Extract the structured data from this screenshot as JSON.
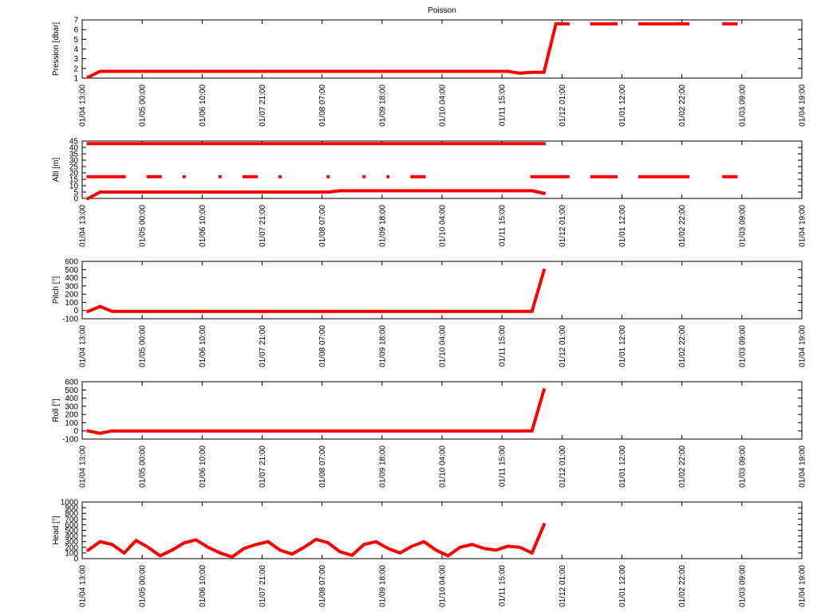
{
  "chart_data": [
    {
      "type": "line",
      "title": "Poisson",
      "y_label": "Pression [dbar]",
      "x": [
        0.1,
        0.3,
        0.5,
        0.7,
        0.9,
        1.1,
        1.3,
        1.5,
        1.7,
        1.9,
        2.1,
        2.3,
        2.5,
        2.7,
        2.9,
        3.1,
        3.3,
        3.5,
        3.7,
        3.9,
        4.1,
        4.3,
        4.5,
        4.7,
        4.9,
        5.1,
        5.3,
        5.5,
        5.7,
        5.9,
        6.1,
        6.3,
        6.5,
        6.7,
        6.9,
        7.1,
        7.3,
        7.5,
        7.7,
        7.9,
        8.1,
        8.3,
        8.5,
        8.7,
        8.9,
        9.1,
        9.3,
        9.5,
        9.7,
        9.9,
        10.1,
        10.3,
        10.5,
        10.7,
        10.9
      ],
      "series": [
        {
          "color": "#ff0000",
          "values": [
            1.1,
            1.7,
            1.7,
            1.7,
            1.7,
            1.7,
            1.7,
            1.7,
            1.7,
            1.7,
            1.7,
            1.7,
            1.7,
            1.7,
            1.7,
            1.7,
            1.7,
            1.7,
            1.7,
            1.7,
            1.7,
            1.7,
            1.7,
            1.7,
            1.7,
            1.7,
            1.7,
            1.7,
            1.7,
            1.7,
            1.7,
            1.7,
            1.7,
            1.7,
            1.7,
            1.7,
            1.5,
            1.6,
            1.6,
            6.6,
            6.6,
            null,
            6.6,
            6.6,
            6.6,
            null,
            6.6,
            6.6,
            6.6,
            6.6,
            6.6,
            null,
            null,
            6.6,
            6.6
          ]
        }
      ],
      "xlim": [
        0,
        12
      ],
      "xticks": [
        {
          "value": 0,
          "label": "01/04 13:00"
        },
        {
          "value": 1,
          "label": "01/05 00:00"
        },
        {
          "value": 2,
          "label": "01/06 10:00"
        },
        {
          "value": 3,
          "label": "01/07 21:00"
        },
        {
          "value": 4,
          "label": "01/08 07:00"
        },
        {
          "value": 5,
          "label": "01/09 18:00"
        },
        {
          "value": 6,
          "label": "01/10 04:00"
        },
        {
          "value": 7,
          "label": "01/11 15:00"
        },
        {
          "value": 8,
          "label": "01/12 01:00"
        },
        {
          "value": 9,
          "label": "01/01 12:00"
        },
        {
          "value": 10,
          "label": "01/02 22:00"
        },
        {
          "value": 11,
          "label": "01/03 09:00"
        },
        {
          "value": 12,
          "label": "01/04 19:00"
        }
      ],
      "ylim": [
        1,
        7
      ],
      "yticks": [
        1,
        2,
        3,
        4,
        5,
        6,
        7
      ]
    },
    {
      "type": "line",
      "y_label": "Alti [m]",
      "x": [
        0.1,
        0.3,
        0.5,
        0.7,
        0.9,
        1.1,
        1.3,
        1.5,
        1.7,
        1.9,
        2.1,
        2.3,
        2.5,
        2.7,
        2.9,
        3.1,
        3.3,
        3.5,
        3.7,
        3.9,
        4.1,
        4.3,
        4.5,
        4.7,
        4.9,
        5.1,
        5.3,
        5.5,
        5.7,
        5.9,
        6.1,
        6.3,
        6.5,
        6.7,
        6.9,
        7.1,
        7.3,
        7.5,
        7.7,
        7.9,
        8.1,
        8.3,
        8.5,
        8.7,
        8.9,
        9.1,
        9.3,
        9.5,
        9.7,
        9.9,
        10.1,
        10.3,
        10.5,
        10.7,
        10.9
      ],
      "series": [
        {
          "color": "#ff0000",
          "values": [
            43,
            43,
            43,
            43,
            43,
            43,
            43,
            43,
            43,
            43,
            43,
            43,
            43,
            43,
            43,
            43,
            43,
            43,
            43,
            43,
            43,
            43,
            43,
            43,
            43,
            43,
            43,
            43,
            43,
            43,
            43,
            43,
            43,
            43,
            43,
            43,
            43,
            43,
            43,
            null,
            null,
            null,
            null,
            null,
            null,
            null,
            null,
            null,
            null,
            null,
            null,
            null,
            null,
            null,
            null
          ]
        },
        {
          "color": "#ff0000",
          "values": [
            17,
            17,
            17,
            17,
            null,
            17,
            17,
            null,
            17,
            null,
            null,
            17,
            null,
            17,
            17,
            null,
            17,
            null,
            null,
            null,
            17,
            null,
            null,
            17,
            null,
            17,
            null,
            17,
            17,
            null,
            null,
            null,
            null,
            null,
            null,
            null,
            null,
            17,
            17,
            17,
            17,
            null,
            17,
            17,
            17,
            null,
            17,
            17,
            17,
            17,
            17,
            null,
            null,
            17,
            17
          ]
        },
        {
          "color": "#ff0000",
          "values": [
            0,
            5,
            5,
            5,
            5,
            5,
            5,
            5,
            5,
            5,
            5,
            5,
            5,
            5,
            5,
            5,
            5,
            5,
            5,
            5,
            5,
            6,
            6,
            6,
            6,
            6,
            6,
            6,
            6,
            6,
            6,
            6,
            6,
            6,
            6,
            6,
            6,
            6,
            4,
            null,
            null,
            null,
            null,
            null,
            null,
            null,
            null,
            null,
            null,
            null,
            null,
            null,
            null,
            null,
            null
          ]
        }
      ],
      "xlim": [
        0,
        12
      ],
      "xticks": [
        {
          "value": 0,
          "label": "01/04 13:00"
        },
        {
          "value": 1,
          "label": "01/05 00:00"
        },
        {
          "value": 2,
          "label": "01/06 10:00"
        },
        {
          "value": 3,
          "label": "01/07 21:00"
        },
        {
          "value": 4,
          "label": "01/08 07:00"
        },
        {
          "value": 5,
          "label": "01/09 18:00"
        },
        {
          "value": 6,
          "label": "01/10 04:00"
        },
        {
          "value": 7,
          "label": "01/11 15:00"
        },
        {
          "value": 8,
          "label": "01/12 01:00"
        },
        {
          "value": 9,
          "label": "01/01 12:00"
        },
        {
          "value": 10,
          "label": "01/02 22:00"
        },
        {
          "value": 11,
          "label": "01/03 09:00"
        },
        {
          "value": 12,
          "label": "01/04 19:00"
        }
      ],
      "ylim": [
        0,
        45
      ],
      "yticks": [
        0,
        5,
        10,
        15,
        20,
        25,
        30,
        35,
        40,
        45
      ]
    },
    {
      "type": "line",
      "y_label": "Pitch [°]",
      "x": [
        0.1,
        0.3,
        0.5,
        0.7,
        0.9,
        1.1,
        1.3,
        1.5,
        1.7,
        1.9,
        2.1,
        2.3,
        2.5,
        2.7,
        2.9,
        3.1,
        3.3,
        3.5,
        3.7,
        3.9,
        4.1,
        4.3,
        4.5,
        4.7,
        4.9,
        5.1,
        5.3,
        5.5,
        5.7,
        5.9,
        6.1,
        6.3,
        6.5,
        6.7,
        6.9,
        7.1,
        7.3,
        7.5,
        7.7,
        7.9,
        8.1,
        8.3,
        8.5,
        8.7,
        8.9,
        9.1,
        9.3,
        9.5,
        9.7,
        9.9,
        10.1,
        10.3,
        10.5,
        10.7,
        10.9
      ],
      "series": [
        {
          "color": "#ff0000",
          "values": [
            -10,
            50,
            -10,
            -10,
            -10,
            -10,
            -10,
            -10,
            -10,
            -10,
            -10,
            -10,
            -10,
            -10,
            -10,
            -10,
            -10,
            -10,
            -10,
            -10,
            -10,
            -10,
            -10,
            -10,
            -10,
            -10,
            -10,
            -10,
            -10,
            -10,
            -10,
            -10,
            -10,
            -10,
            -10,
            -10,
            -10,
            -10,
            490,
            null,
            null,
            null,
            null,
            null,
            null,
            null,
            null,
            null,
            null,
            null,
            null,
            null,
            null,
            null,
            null
          ]
        }
      ],
      "xlim": [
        0,
        12
      ],
      "xticks": [
        {
          "value": 0,
          "label": "01/04 13:00"
        },
        {
          "value": 1,
          "label": "01/05 00:00"
        },
        {
          "value": 2,
          "label": "01/06 10:00"
        },
        {
          "value": 3,
          "label": "01/07 21:00"
        },
        {
          "value": 4,
          "label": "01/08 07:00"
        },
        {
          "value": 5,
          "label": "01/09 18:00"
        },
        {
          "value": 6,
          "label": "01/10 04:00"
        },
        {
          "value": 7,
          "label": "01/11 15:00"
        },
        {
          "value": 8,
          "label": "01/12 01:00"
        },
        {
          "value": 9,
          "label": "01/01 12:00"
        },
        {
          "value": 10,
          "label": "01/02 22:00"
        },
        {
          "value": 11,
          "label": "01/03 09:00"
        },
        {
          "value": 12,
          "label": "01/04 19:00"
        }
      ],
      "ylim": [
        -100,
        600
      ],
      "yticks": [
        -100,
        0,
        100,
        200,
        300,
        400,
        500,
        600
      ]
    },
    {
      "type": "line",
      "y_label": "Roll [°]",
      "x": [
        0.1,
        0.3,
        0.5,
        0.7,
        0.9,
        1.1,
        1.3,
        1.5,
        1.7,
        1.9,
        2.1,
        2.3,
        2.5,
        2.7,
        2.9,
        3.1,
        3.3,
        3.5,
        3.7,
        3.9,
        4.1,
        4.3,
        4.5,
        4.7,
        4.9,
        5.1,
        5.3,
        5.5,
        5.7,
        5.9,
        6.1,
        6.3,
        6.5,
        6.7,
        6.9,
        7.1,
        7.3,
        7.5,
        7.7,
        7.9,
        8.1,
        8.3,
        8.5,
        8.7,
        8.9,
        9.1,
        9.3,
        9.5,
        9.7,
        9.9,
        10.1,
        10.3,
        10.5,
        10.7,
        10.9
      ],
      "series": [
        {
          "color": "#ff0000",
          "values": [
            0,
            -30,
            0,
            0,
            0,
            0,
            0,
            0,
            0,
            0,
            0,
            0,
            0,
            0,
            0,
            0,
            0,
            0,
            0,
            0,
            0,
            0,
            0,
            0,
            0,
            0,
            0,
            0,
            0,
            0,
            0,
            0,
            0,
            0,
            0,
            0,
            0,
            0,
            500,
            null,
            null,
            null,
            null,
            null,
            null,
            null,
            null,
            null,
            null,
            null,
            null,
            null,
            null,
            null,
            null
          ]
        }
      ],
      "xlim": [
        0,
        12
      ],
      "xticks": [
        {
          "value": 0,
          "label": "01/04 13:00"
        },
        {
          "value": 1,
          "label": "01/05 00:00"
        },
        {
          "value": 2,
          "label": "01/06 10:00"
        },
        {
          "value": 3,
          "label": "01/07 21:00"
        },
        {
          "value": 4,
          "label": "01/08 07:00"
        },
        {
          "value": 5,
          "label": "01/09 18:00"
        },
        {
          "value": 6,
          "label": "01/10 04:00"
        },
        {
          "value": 7,
          "label": "01/11 15:00"
        },
        {
          "value": 8,
          "label": "01/12 01:00"
        },
        {
          "value": 9,
          "label": "01/01 12:00"
        },
        {
          "value": 10,
          "label": "01/02 22:00"
        },
        {
          "value": 11,
          "label": "01/03 09:00"
        },
        {
          "value": 12,
          "label": "01/04 19:00"
        }
      ],
      "ylim": [
        -100,
        600
      ],
      "yticks": [
        -100,
        0,
        100,
        200,
        300,
        400,
        500,
        600
      ]
    },
    {
      "type": "line",
      "y_label": "Head [°]",
      "x": [
        0.1,
        0.3,
        0.5,
        0.7,
        0.9,
        1.1,
        1.3,
        1.5,
        1.7,
        1.9,
        2.1,
        2.3,
        2.5,
        2.7,
        2.9,
        3.1,
        3.3,
        3.5,
        3.7,
        3.9,
        4.1,
        4.3,
        4.5,
        4.7,
        4.9,
        5.1,
        5.3,
        5.5,
        5.7,
        5.9,
        6.1,
        6.3,
        6.5,
        6.7,
        6.9,
        7.1,
        7.3,
        7.5,
        7.7,
        7.9,
        8.1,
        8.3,
        8.5,
        8.7,
        8.9,
        9.1,
        9.3,
        9.5,
        9.7,
        9.9,
        10.1,
        10.3,
        10.5,
        10.7,
        10.9
      ],
      "series": [
        {
          "color": "#ff0000",
          "values": [
            150,
            300,
            250,
            100,
            320,
            200,
            50,
            150,
            280,
            330,
            200,
            100,
            30,
            180,
            250,
            300,
            150,
            80,
            200,
            340,
            280,
            120,
            60,
            250,
            300,
            180,
            100,
            220,
            300,
            150,
            50,
            200,
            250,
            180,
            150,
            220,
            200,
            100,
            600,
            null,
            null,
            null,
            null,
            null,
            null,
            null,
            null,
            null,
            null,
            null,
            null,
            null,
            null,
            null,
            null
          ]
        }
      ],
      "xlim": [
        0,
        12
      ],
      "xticks": [
        {
          "value": 0,
          "label": "01/04 13:00"
        },
        {
          "value": 1,
          "label": "01/05 00:00"
        },
        {
          "value": 2,
          "label": "01/06 10:00"
        },
        {
          "value": 3,
          "label": "01/07 21:00"
        },
        {
          "value": 4,
          "label": "01/08 07:00"
        },
        {
          "value": 5,
          "label": "01/09 18:00"
        },
        {
          "value": 6,
          "label": "01/10 04:00"
        },
        {
          "value": 7,
          "label": "01/11 15:00"
        },
        {
          "value": 8,
          "label": "01/12 01:00"
        },
        {
          "value": 9,
          "label": "01/01 12:00"
        },
        {
          "value": 10,
          "label": "01/02 22:00"
        },
        {
          "value": 11,
          "label": "01/03 09:00"
        },
        {
          "value": 12,
          "label": "01/04 19:00"
        }
      ],
      "ylim": [
        0,
        1000
      ],
      "yticks": [
        0,
        100,
        200,
        300,
        400,
        500,
        600,
        700,
        800,
        900,
        1000
      ]
    }
  ]
}
